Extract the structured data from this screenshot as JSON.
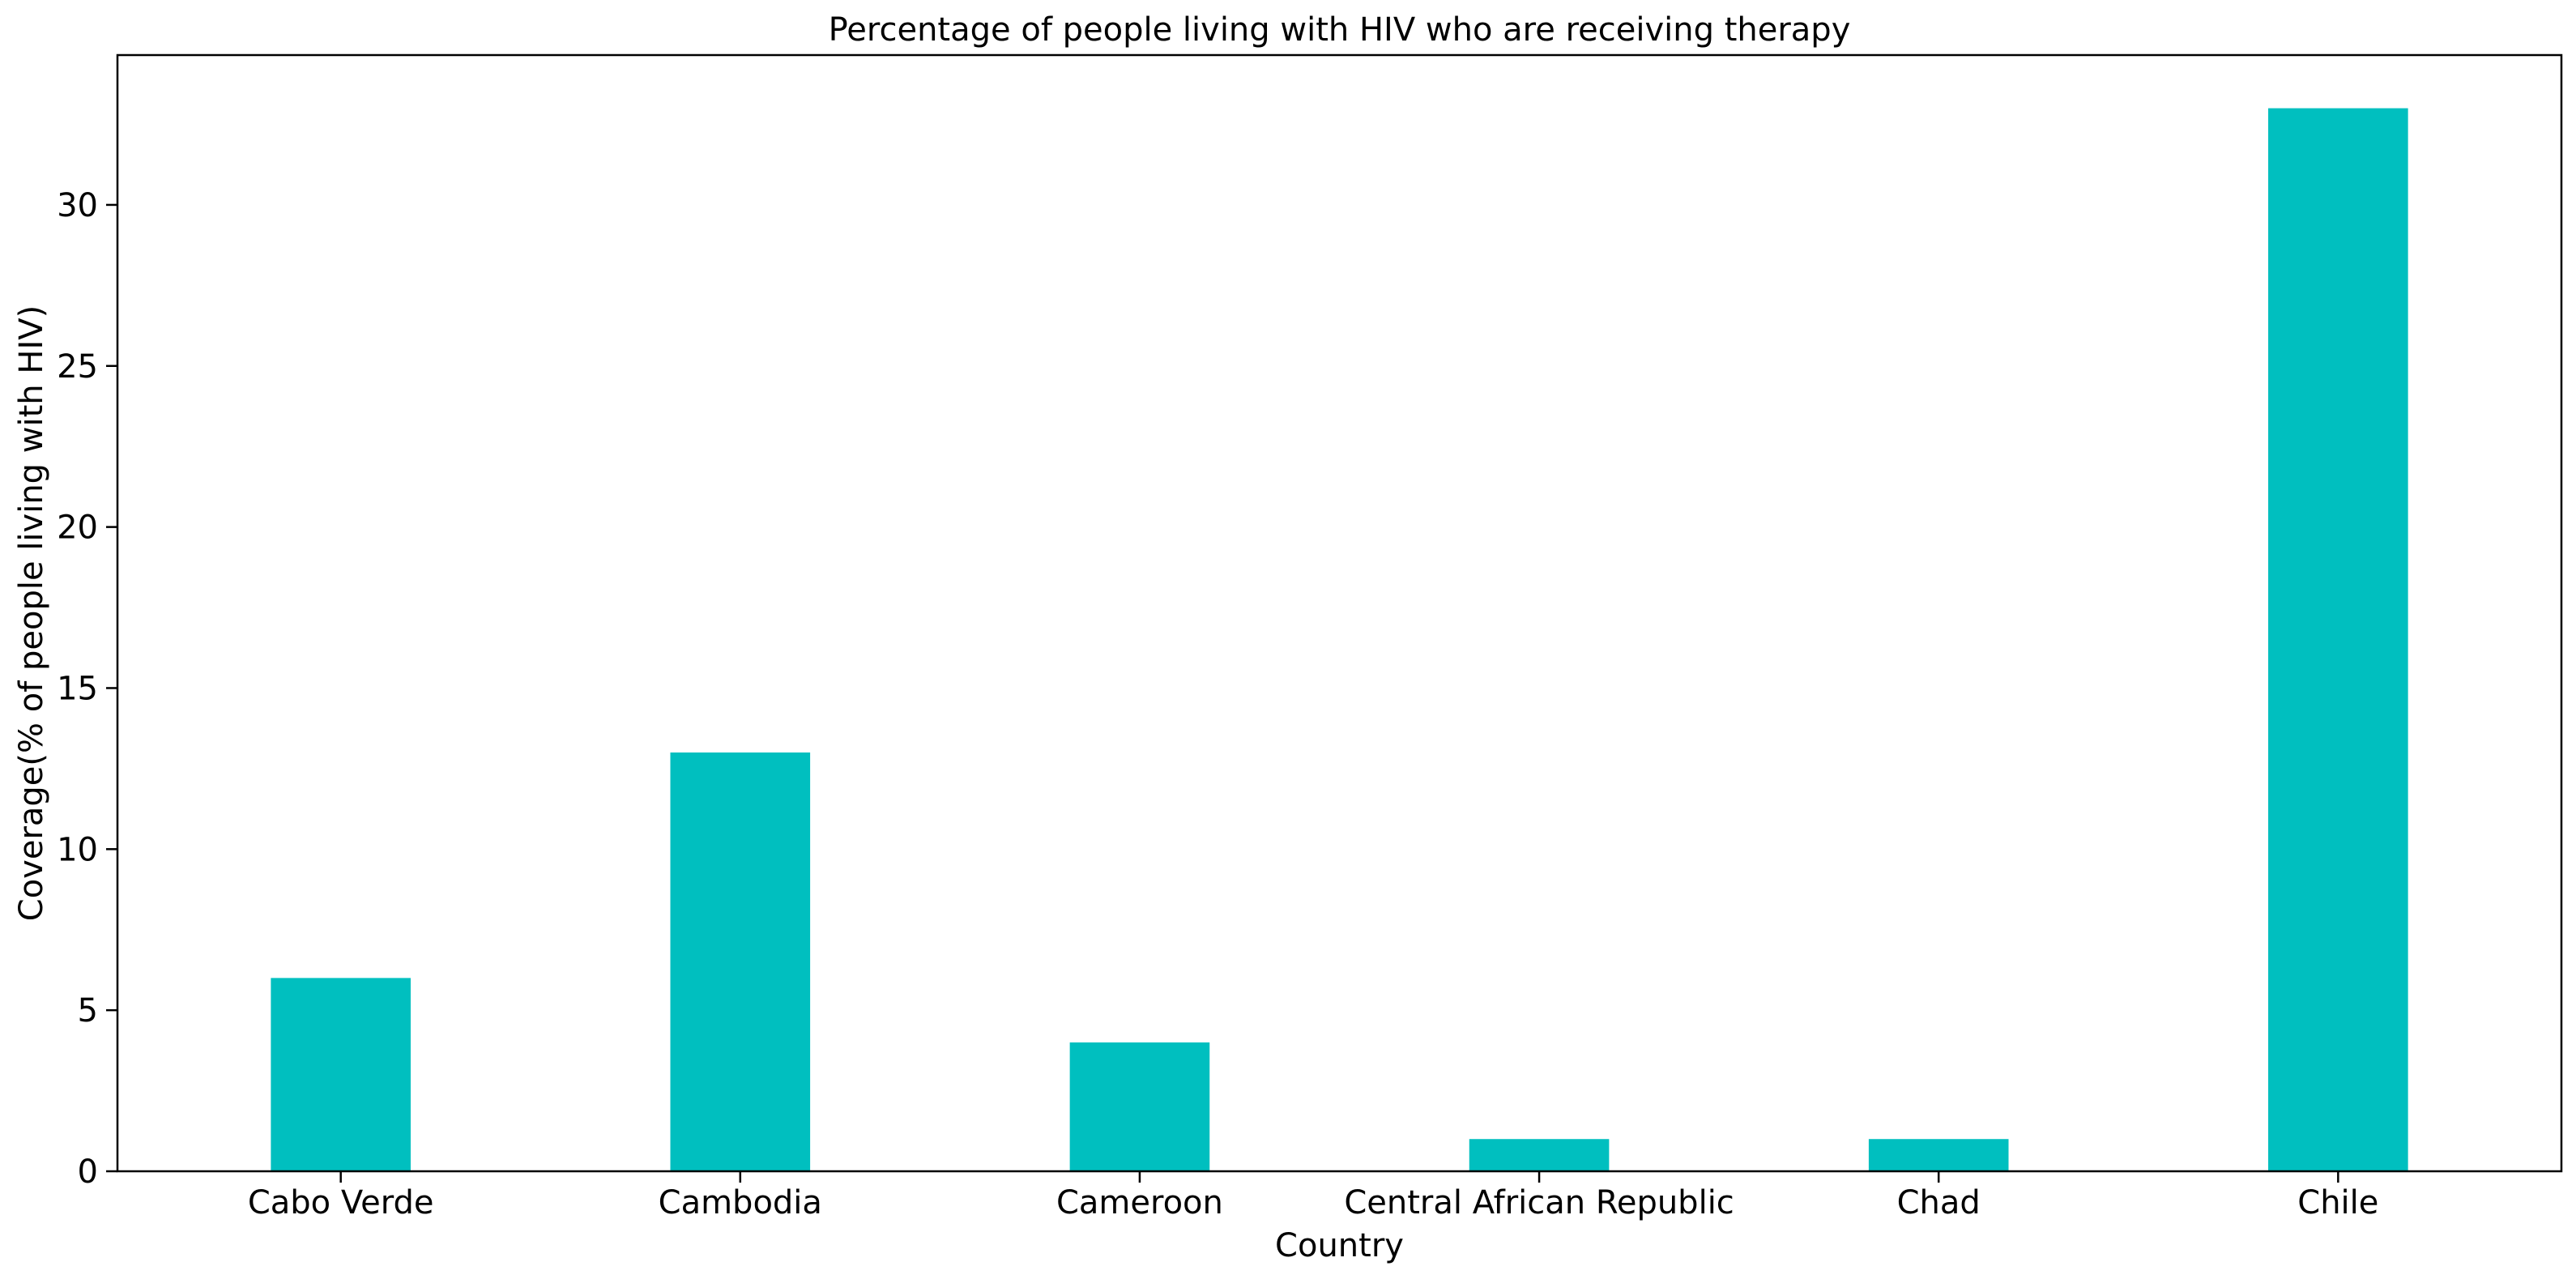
{
  "chart_data": {
    "type": "bar",
    "title": "Percentage of people living with HIV who are receiving therapy",
    "xlabel": "Country",
    "ylabel": "Coverage(% of people living with HIV)",
    "categories": [
      "Cabo Verde",
      "Cambodia",
      "Cameroon",
      "Central African Republic",
      "Chad",
      "Chile"
    ],
    "values": [
      6,
      13,
      4,
      1,
      1,
      33
    ],
    "ylim": [
      0,
      34.65
    ],
    "yticks": [
      0,
      5,
      10,
      15,
      20,
      25,
      30
    ],
    "bar_color": "#00bfbf",
    "grid": false,
    "legend": "none"
  }
}
